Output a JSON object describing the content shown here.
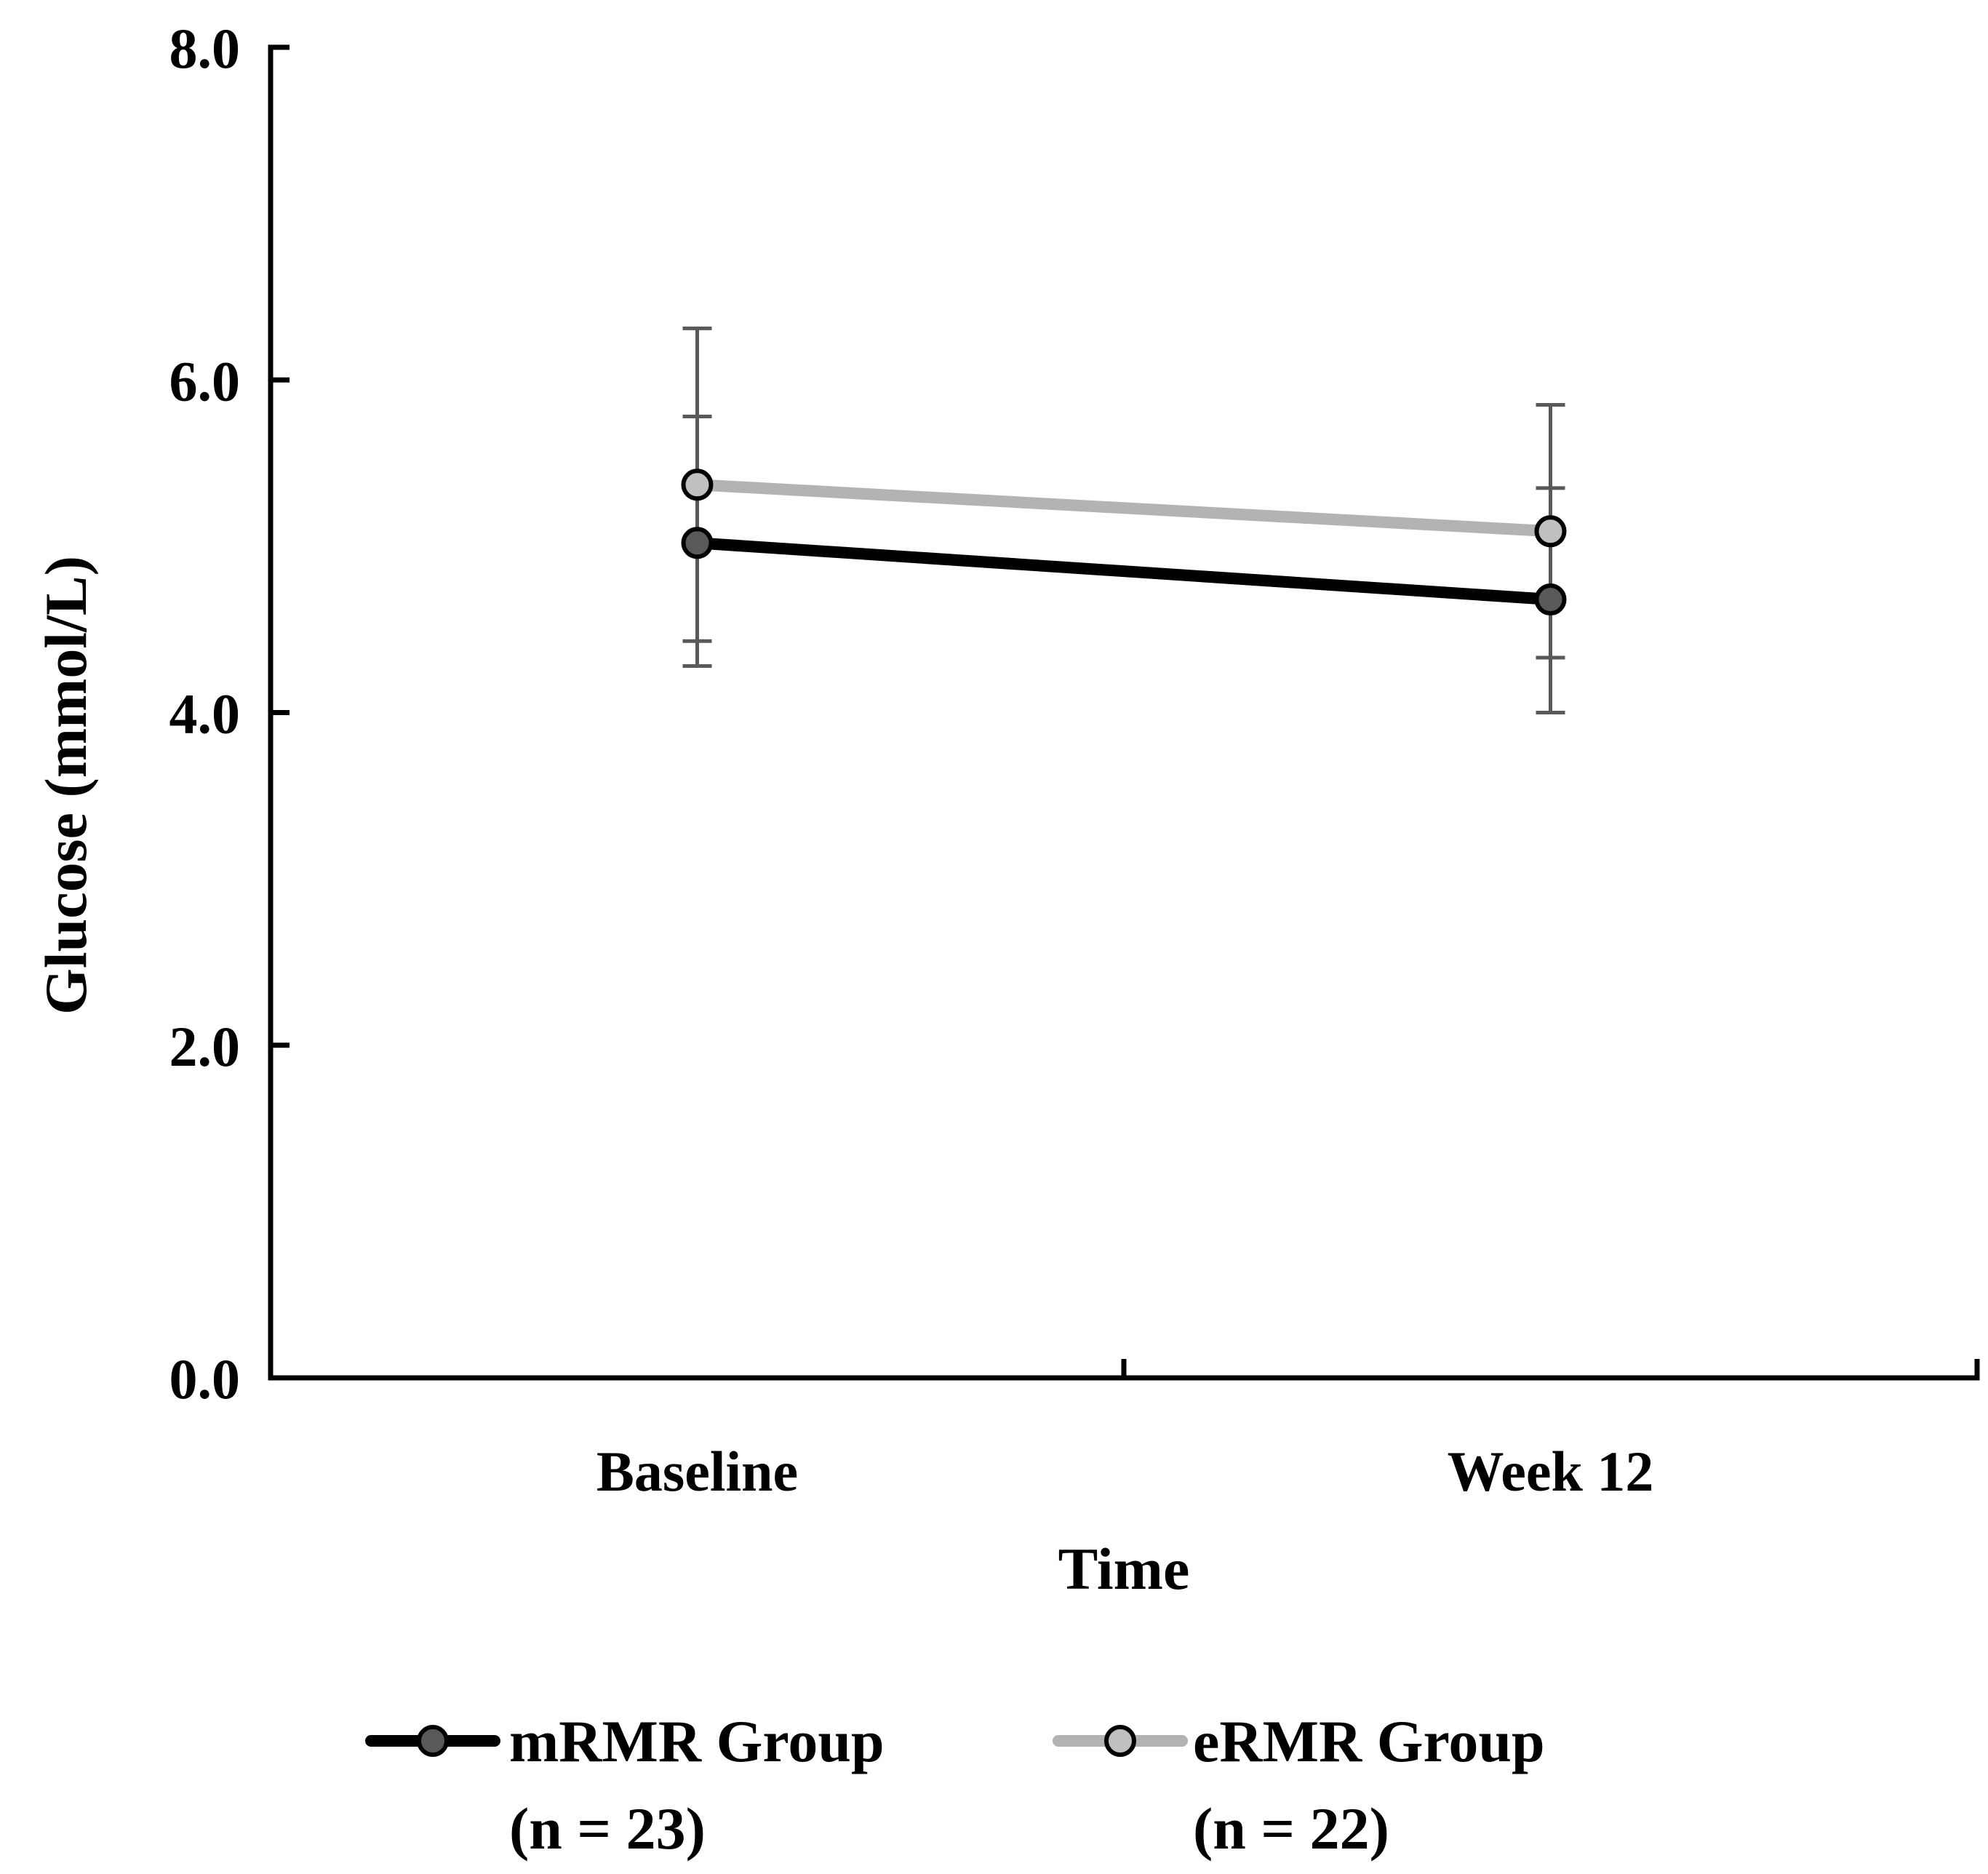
{
  "chart_data": {
    "type": "line",
    "title": "",
    "xlabel": "Time",
    "ylabel": "Glucose (mmol/L)",
    "ylim": [
      0,
      8
    ],
    "yticks": [
      "0.0",
      "2.0",
      "4.0",
      "6.0",
      "8.0"
    ],
    "categories": [
      "Baseline",
      "Week 12"
    ],
    "grid": false,
    "legend_position": "bottom",
    "series": [
      {
        "name": "mRMR Group",
        "n_label": "(n = 23)",
        "values": [
          5.02,
          4.68
        ],
        "error_low": [
          4.28,
          4.0
        ],
        "error_high": [
          5.78,
          5.35
        ],
        "line_color": "#000000",
        "marker_fill": "#595959"
      },
      {
        "name": "eRMR Group",
        "n_label": "(n = 22)",
        "values": [
          5.37,
          5.09
        ],
        "error_low": [
          4.43,
          4.33
        ],
        "error_high": [
          6.31,
          5.85
        ],
        "line_color": "#b3b3b3",
        "marker_fill": "#c0c0c0"
      }
    ],
    "error_bar_color": "#595959"
  }
}
